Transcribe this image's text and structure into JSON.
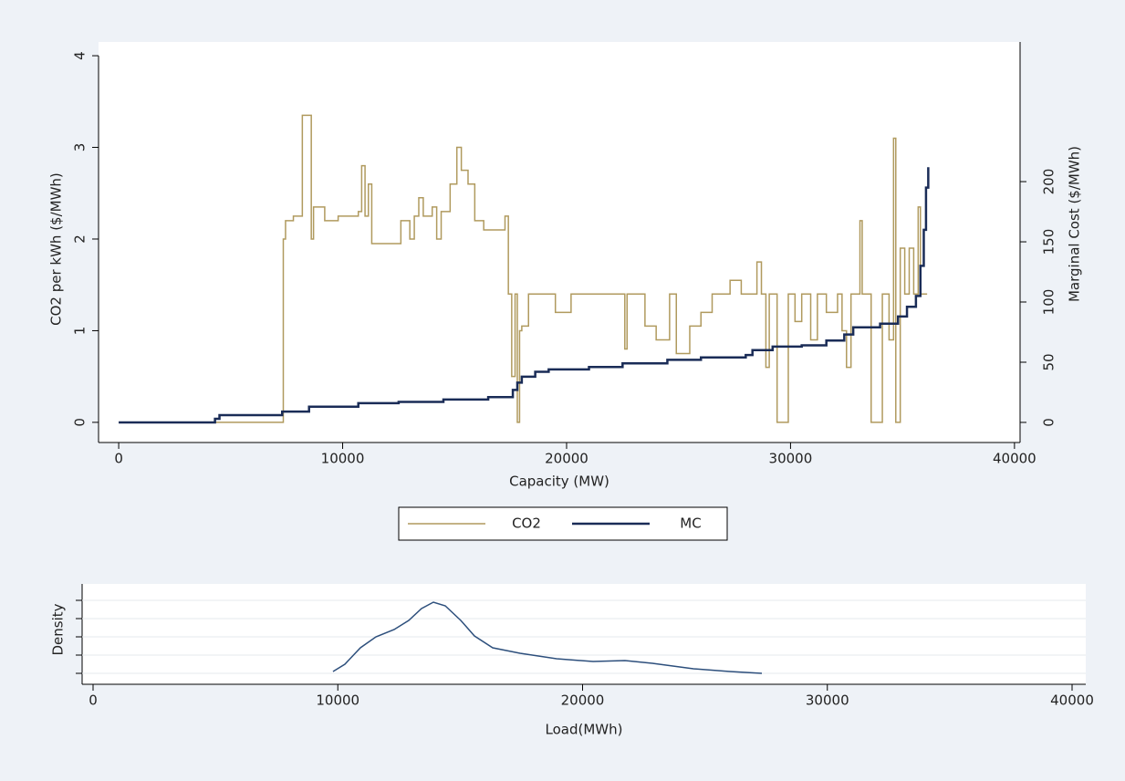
{
  "chart_data": [
    {
      "type": "line",
      "drawstyle": "steps-post",
      "x_label": "Capacity (MW)",
      "y_label": "CO2 per kWh ($/MWh)",
      "y2_label": "Marginal Cost ($/MWh)",
      "xlim": [
        -900,
        40250
      ],
      "xticks": [
        0,
        10000,
        20000,
        30000,
        40000
      ],
      "ylim": [
        -0.22,
        4.15
      ],
      "yticks": [
        0,
        1,
        2,
        3,
        4
      ],
      "y2lim": [
        -16.7,
        316
      ],
      "y2ticks": [
        0,
        50,
        100,
        150,
        200
      ],
      "legend": "bottom",
      "grid": false,
      "series": [
        {
          "name": "CO2",
          "color": "#b09a5e",
          "x": [
            0,
            7350,
            7450,
            7800,
            8200,
            8600,
            8700,
            9200,
            9800,
            10700,
            10850,
            11000,
            11150,
            11300,
            12600,
            13000,
            13200,
            13400,
            13600,
            14000,
            14200,
            14400,
            14800,
            15100,
            15300,
            15600,
            15900,
            16300,
            17000,
            17250,
            17400,
            17550,
            17700,
            17800,
            17900,
            18000,
            18300,
            19200,
            19500,
            20200,
            22500,
            22600,
            22700,
            23300,
            23500,
            24000,
            24600,
            24900,
            25500,
            26000,
            26500,
            27300,
            27800,
            28500,
            28700,
            28900,
            29050,
            29400,
            29900,
            30200,
            30500,
            30900,
            31200,
            31600,
            32100,
            32300,
            32500,
            32700,
            33100,
            33200,
            33600,
            34100,
            34400,
            34600,
            34700,
            34900,
            35100,
            35300,
            35500,
            35700,
            35800,
            36100
          ],
          "values": [
            0,
            2.0,
            2.2,
            2.25,
            3.35,
            2.0,
            2.35,
            2.2,
            2.25,
            2.3,
            2.8,
            2.25,
            2.6,
            1.95,
            2.2,
            2.0,
            2.25,
            2.45,
            2.25,
            2.35,
            2.0,
            2.3,
            2.6,
            3.0,
            2.75,
            2.6,
            2.2,
            2.1,
            2.1,
            2.25,
            1.4,
            0.5,
            1.4,
            0,
            1.0,
            1.05,
            1.4,
            1.4,
            1.2,
            1.4,
            1.4,
            0.8,
            1.4,
            1.4,
            1.05,
            0.9,
            1.4,
            0.75,
            1.05,
            1.2,
            1.4,
            1.55,
            1.4,
            1.75,
            1.4,
            0.6,
            1.4,
            0,
            1.4,
            1.1,
            1.4,
            0.9,
            1.4,
            1.2,
            1.4,
            1.0,
            0.6,
            1.4,
            2.2,
            1.4,
            0,
            1.4,
            0.9,
            3.1,
            0,
            1.9,
            1.4,
            1.9,
            1.4,
            2.35,
            1.4,
            1.4
          ]
        },
        {
          "name": "MC",
          "color": "#1a2c57",
          "axis": "y2",
          "x": [
            0,
            4300,
            4500,
            7300,
            8500,
            10700,
            12500,
            14500,
            16500,
            17600,
            17800,
            18000,
            18600,
            19200,
            21000,
            22500,
            24500,
            26000,
            28000,
            28300,
            29200,
            30500,
            31600,
            32400,
            32800,
            34000,
            34800,
            35200,
            35600,
            35800,
            35950,
            36050,
            36150
          ],
          "values": [
            0,
            3,
            6,
            9,
            13,
            16,
            17,
            19,
            21,
            27,
            33,
            38,
            42,
            44,
            46,
            49,
            52,
            54,
            56,
            60,
            63,
            64,
            68,
            73,
            79,
            82,
            88,
            96,
            105,
            130,
            160,
            195,
            212
          ]
        }
      ]
    },
    {
      "type": "line",
      "drawstyle": "linear",
      "x_label": "Load(MWh)",
      "y_label": "Density",
      "xlim": [
        -447,
        40559
      ],
      "xticks": [
        0,
        10000,
        20000,
        30000,
        40000
      ],
      "ylim": [
        -1.2e-05,
        9.8e-05
      ],
      "yticks": [
        0,
        2e-05,
        4e-05,
        6e-05,
        8e-05
      ],
      "grid": true,
      "series": [
        {
          "color": "#2d4f7c",
          "x": [
            9804,
            10289,
            10923,
            11557,
            12302,
            12898,
            13420,
            13905,
            14390,
            15023,
            15582,
            16328,
            17446,
            18937,
            20428,
            21733,
            22852,
            24529,
            26020,
            27325
          ],
          "values": [
            2e-06,
            1e-05,
            2.8e-05,
            4e-05,
            4.8e-05,
            5.8e-05,
            7.1e-05,
            7.8e-05,
            7.4e-05,
            5.8e-05,
            4.1e-05,
            2.8e-05,
            2.2e-05,
            1.6e-05,
            1.3e-05,
            1.4e-05,
            1.1e-05,
            5e-06,
            2e-06,
            0
          ]
        }
      ]
    }
  ]
}
